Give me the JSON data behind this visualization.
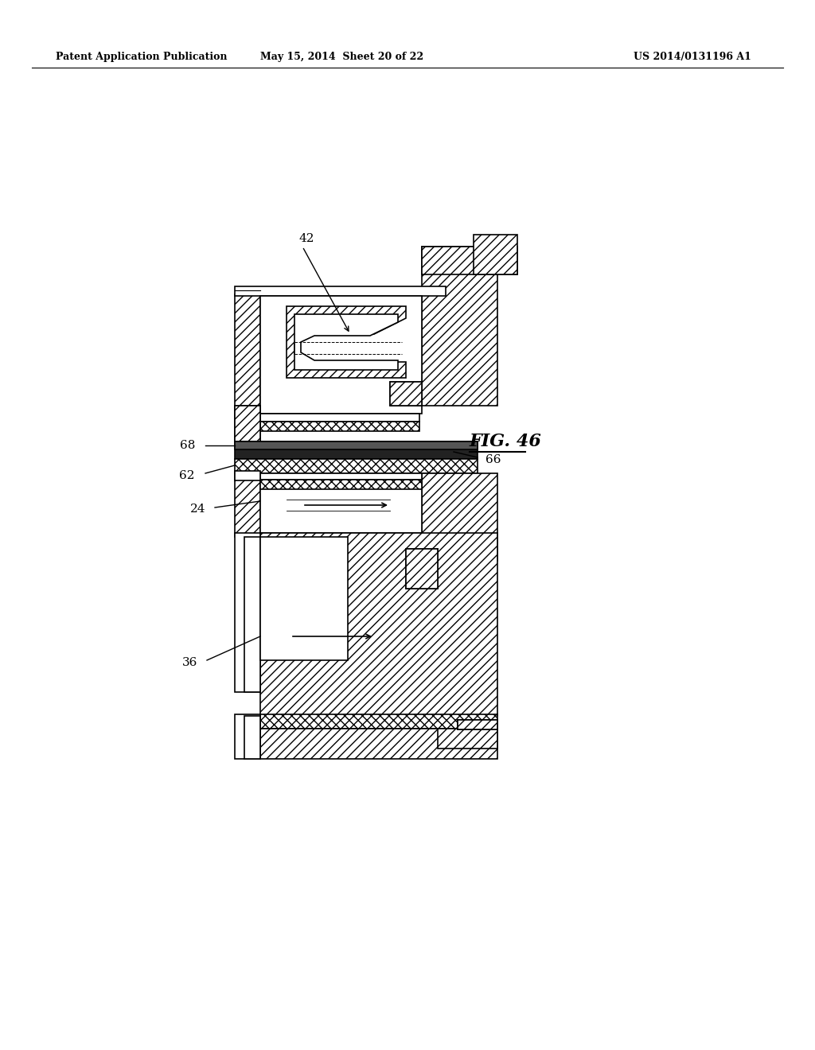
{
  "bg_color": "#ffffff",
  "header_left": "Patent Application Publication",
  "header_center": "May 15, 2014  Sheet 20 of 22",
  "header_right": "US 2014/0131196 A1",
  "fig_label": "FIG. 46",
  "hatch_angle": "///",
  "lw": 1.2
}
